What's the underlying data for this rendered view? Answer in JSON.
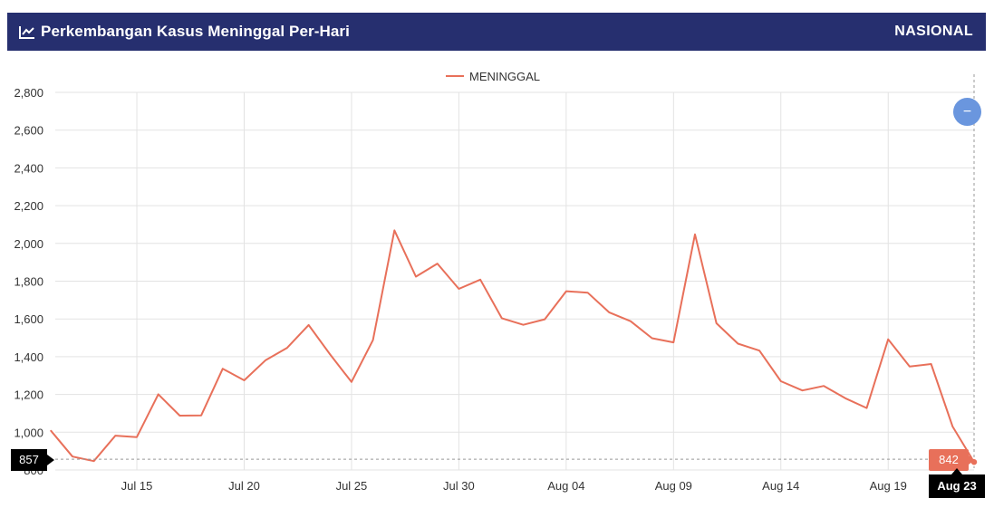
{
  "header": {
    "title": "Perkembangan Kasus Meninggal Per-Hari",
    "scope": "NASIONAL",
    "icon": "line-chart-icon"
  },
  "zoom_button": {
    "icon": "minus-icon",
    "label": "−"
  },
  "crosshair": {
    "y_label": "857",
    "value_label": "842",
    "x_label": "Aug 23"
  },
  "colors": {
    "header_bg": "#262f6f",
    "series": "#e8705a",
    "zoom": "#6a96de"
  },
  "chart_data": {
    "type": "line",
    "title": "Perkembangan Kasus Meninggal Per-Hari",
    "xlabel": "",
    "ylabel": "",
    "x": [
      "Jul 11",
      "Jul 12",
      "Jul 13",
      "Jul 14",
      "Jul 15",
      "Jul 16",
      "Jul 17",
      "Jul 18",
      "Jul 19",
      "Jul 20",
      "Jul 21",
      "Jul 22",
      "Jul 23",
      "Jul 24",
      "Jul 25",
      "Jul 26",
      "Jul 27",
      "Jul 28",
      "Jul 29",
      "Jul 30",
      "Jul 31",
      "Aug 01",
      "Aug 02",
      "Aug 03",
      "Aug 04",
      "Aug 05",
      "Aug 06",
      "Aug 07",
      "Aug 08",
      "Aug 09",
      "Aug 10",
      "Aug 11",
      "Aug 12",
      "Aug 13",
      "Aug 14",
      "Aug 15",
      "Aug 16",
      "Aug 17",
      "Aug 18",
      "Aug 19",
      "Aug 20",
      "Aug 21",
      "Aug 22",
      "Aug 23"
    ],
    "series": [
      {
        "name": "MENINGGAL",
        "color": "#e8705a",
        "values": [
          1007,
          871,
          847,
          982,
          974,
          1201,
          1088,
          1089,
          1336,
          1275,
          1382,
          1447,
          1568,
          1412,
          1266,
          1488,
          2069,
          1824,
          1893,
          1759,
          1808,
          1604,
          1569,
          1598,
          1747,
          1739,
          1635,
          1588,
          1498,
          1476,
          2048,
          1577,
          1469,
          1432,
          1270,
          1221,
          1245,
          1180,
          1128,
          1492,
          1348,
          1361,
          1030,
          842
        ]
      }
    ],
    "x_ticks": [
      "Jul 15",
      "Jul 20",
      "Jul 25",
      "Jul 30",
      "Aug 04",
      "Aug 09",
      "Aug 14",
      "Aug 19"
    ],
    "y_ticks": [
      "800",
      "1,000",
      "1,200",
      "1,400",
      "1,600",
      "1,800",
      "2,000",
      "2,200",
      "2,400",
      "2,600",
      "2,800"
    ],
    "ylim": [
      800,
      2800
    ],
    "grid": true,
    "legend_position": "top-center"
  }
}
